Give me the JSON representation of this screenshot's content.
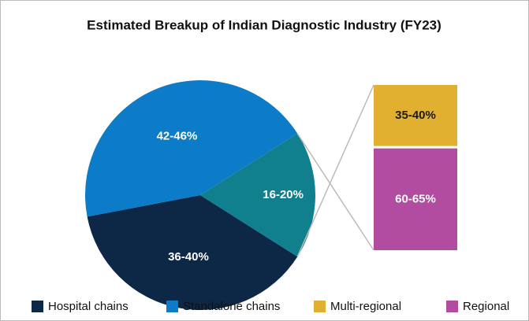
{
  "chart_data": [
    {
      "type": "pie",
      "title": "Estimated Breakup of Indian Diagnostic Industry (FY23)",
      "categories": [
        "Hospital chains",
        "Standalone chains",
        null
      ],
      "values": [
        38,
        44,
        18
      ],
      "value_labels": [
        "36-40%",
        "42-46%",
        "16-20%"
      ],
      "colors": [
        "#0d2847",
        "#0c7cc8",
        "#10808f"
      ]
    },
    {
      "type": "bar",
      "categories": [
        "Multi-regional",
        "Regional"
      ],
      "values": [
        37.5,
        62.5
      ],
      "value_labels": [
        "35-40%",
        "60-65%"
      ],
      "colors": [
        "#e2b031",
        "#b24ca1"
      ]
    }
  ]
}
